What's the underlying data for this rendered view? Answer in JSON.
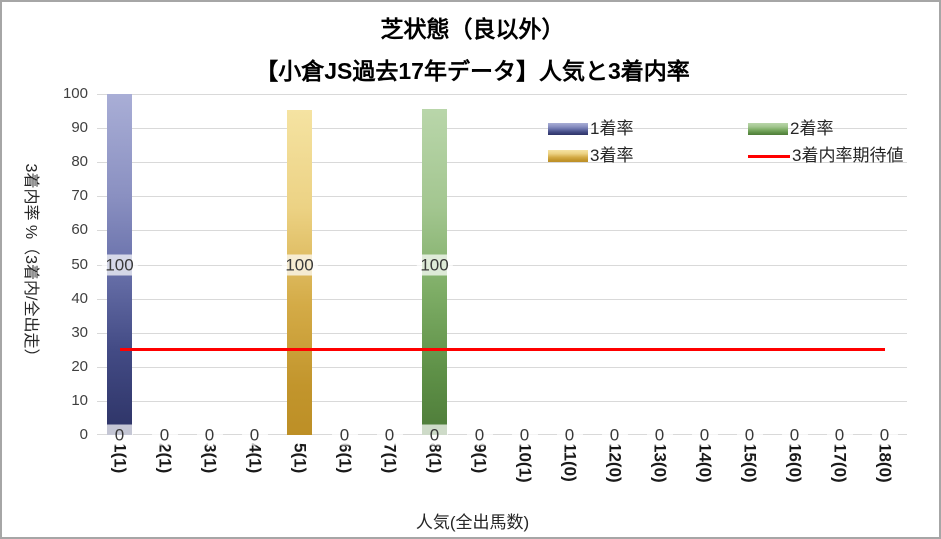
{
  "chart_data": {
    "type": "bar",
    "title": "芝状態（良以外）",
    "subtitle": "【小倉JS過去17年データ】人気と3着内率",
    "xlabel": "人気(全出馬数)",
    "ylabel": "3着内率 %（3着内/全出走）",
    "ylim": [
      0,
      100
    ],
    "ytick_step": 10,
    "grid": true,
    "legend_position": "top-right-inside",
    "categories": [
      "1(1)",
      "2(1)",
      "3(1)",
      "4(1)",
      "5(1)",
      "6(1)",
      "7(1)",
      "8(1)",
      "9(1)",
      "10(1)",
      "11(0)",
      "12(0)",
      "13(0)",
      "14(0)",
      "15(0)",
      "16(0)",
      "17(0)",
      "18(0)"
    ],
    "series": [
      {
        "name": "1着率",
        "type": "column",
        "gradient": [
          "#a9aed6 0%",
          "#8a90c1 30%",
          "#6b73ac 50%",
          "#434b85 75%",
          "#2d3366 100%"
        ],
        "values": [
          100,
          0,
          0,
          0,
          0,
          0,
          0,
          0,
          0,
          0,
          0,
          0,
          0,
          0,
          0,
          0,
          0,
          0
        ]
      },
      {
        "name": "2着率",
        "type": "column",
        "gradient": [
          "#b9d6aa 0%",
          "#a3c690 30%",
          "#7fae67 55%",
          "#5f9148 80%",
          "#4e7c39 100%"
        ],
        "values": [
          0,
          0,
          0,
          0,
          0,
          0,
          0,
          100,
          0,
          0,
          0,
          0,
          0,
          0,
          0,
          0,
          0,
          0
        ]
      },
      {
        "name": "3着率",
        "type": "column",
        "gradient": [
          "#f5e3a2 0%",
          "#ecd284 30%",
          "#d4ab47 60%",
          "#c2952c 85%",
          "#bd8f26 100%"
        ],
        "values": [
          0,
          0,
          0,
          0,
          100,
          0,
          0,
          0,
          0,
          0,
          0,
          0,
          0,
          0,
          0,
          0,
          0,
          0
        ]
      },
      {
        "name": "3着内率期待値",
        "type": "line",
        "color": "#ff0000",
        "value": 25,
        "from_category": "1(1)",
        "to_category": "18(0)"
      }
    ],
    "rendered_bars": [
      {
        "category_index": 0,
        "series_index": 0,
        "label": "100",
        "value": 100,
        "top_pct": 100
      },
      {
        "category_index": 4,
        "series_index": 2,
        "label": "100",
        "value": 100,
        "top_pct": 95.4
      },
      {
        "category_index": 7,
        "series_index": 1,
        "label": "100",
        "value": 100,
        "top_pct": 95.7
      }
    ],
    "value_label_center_pct": 50,
    "zero_label_text": "0",
    "zero_label_hidden_categories": [
      4
    ]
  },
  "colors": {
    "gridline": "#d9d9d9",
    "chart_border": "#a6a6a6",
    "expected_line": "#ff0000",
    "background": "#ffffff"
  }
}
